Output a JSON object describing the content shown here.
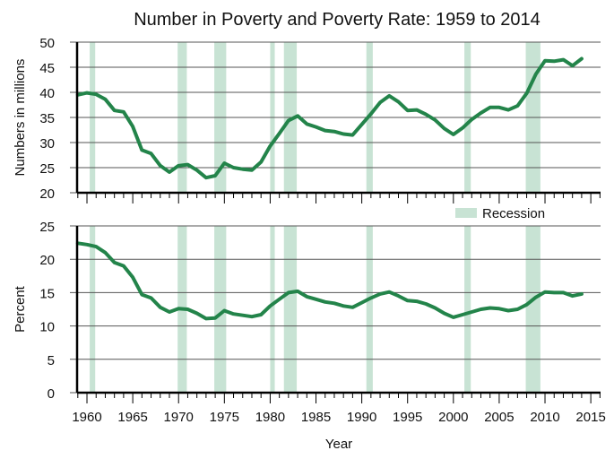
{
  "chart_data": {
    "type": "line",
    "title": "Number in Poverty and Poverty Rate: 1959 to 2014",
    "xlabel": "Year",
    "xlim": [
      1959,
      2016
    ],
    "x_ticks": [
      1960,
      1965,
      1970,
      1975,
      1980,
      1985,
      1990,
      1995,
      2000,
      2005,
      2010,
      2015
    ],
    "legend": {
      "label": "Recession",
      "placement": "top-right of lower panel"
    },
    "colors": {
      "line": "#23844a",
      "recession": "#c8e3d4",
      "axis": "#000000",
      "grid": "#555555"
    },
    "recessions": [
      [
        1960.3,
        1960.9
      ],
      [
        1969.9,
        1970.9
      ],
      [
        1973.9,
        1975.2
      ],
      [
        1980.0,
        1980.5
      ],
      [
        1981.5,
        1982.9
      ],
      [
        1990.5,
        1991.2
      ],
      [
        2001.2,
        2001.9
      ],
      [
        2007.9,
        2009.5
      ]
    ],
    "x": [
      1959,
      1960,
      1961,
      1962,
      1963,
      1964,
      1965,
      1966,
      1967,
      1968,
      1969,
      1970,
      1971,
      1972,
      1973,
      1974,
      1975,
      1976,
      1977,
      1978,
      1979,
      1980,
      1981,
      1982,
      1983,
      1984,
      1985,
      1986,
      1987,
      1988,
      1989,
      1990,
      1991,
      1992,
      1993,
      1994,
      1995,
      1996,
      1997,
      1998,
      1999,
      2000,
      2001,
      2002,
      2003,
      2004,
      2005,
      2006,
      2007,
      2008,
      2009,
      2010,
      2011,
      2012,
      2013,
      2014
    ],
    "panels": [
      {
        "ylabel": "Numbers in millions",
        "ylim": [
          20,
          50
        ],
        "y_ticks": [
          20,
          25,
          30,
          35,
          40,
          45,
          50
        ],
        "series": [
          {
            "name": "Number in poverty (millions)",
            "values": [
              39.5,
              39.9,
              39.6,
              38.6,
              36.4,
              36.1,
              33.2,
              28.5,
              27.8,
              25.4,
              24.1,
              25.4,
              25.6,
              24.5,
              23.0,
              23.4,
              25.9,
              25.0,
              24.7,
              24.5,
              26.1,
              29.3,
              31.8,
              34.4,
              35.3,
              33.7,
              33.1,
              32.4,
              32.2,
              31.7,
              31.5,
              33.6,
              35.7,
              38.0,
              39.3,
              38.1,
              36.4,
              36.5,
              35.6,
              34.5,
              32.8,
              31.6,
              32.9,
              34.6,
              35.9,
              37.0,
              37.0,
              36.5,
              37.3,
              39.8,
              43.6,
              46.3,
              46.2,
              46.5,
              45.3,
              46.7
            ]
          }
        ]
      },
      {
        "ylabel": "Percent",
        "ylim": [
          0,
          25
        ],
        "y_ticks": [
          0,
          5,
          10,
          15,
          20,
          25
        ],
        "series": [
          {
            "name": "Poverty rate (percent)",
            "values": [
              22.4,
              22.2,
              21.9,
              21.0,
              19.5,
              19.0,
              17.3,
              14.7,
              14.2,
              12.8,
              12.1,
              12.6,
              12.5,
              11.9,
              11.1,
              11.2,
              12.3,
              11.8,
              11.6,
              11.4,
              11.7,
              13.0,
              14.0,
              15.0,
              15.2,
              14.4,
              14.0,
              13.6,
              13.4,
              13.0,
              12.8,
              13.5,
              14.2,
              14.8,
              15.1,
              14.5,
              13.8,
              13.7,
              13.3,
              12.7,
              11.9,
              11.3,
              11.7,
              12.1,
              12.5,
              12.7,
              12.6,
              12.3,
              12.5,
              13.2,
              14.3,
              15.1,
              15.0,
              15.0,
              14.5,
              14.8
            ]
          }
        ]
      }
    ]
  }
}
